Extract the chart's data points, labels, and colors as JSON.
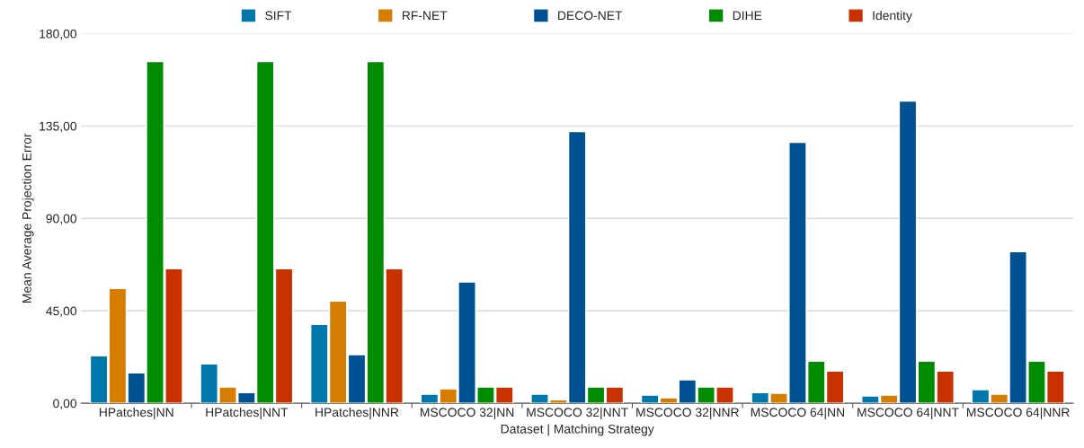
{
  "chart_data": {
    "type": "bar",
    "xlabel": "Dataset | Matching Strategy",
    "ylabel": "Mean Average Projection Error",
    "categories": [
      "HPatches|NN",
      "HPatches|NNT",
      "HPatches|NNR",
      "MSCOCO 32|NN",
      "MSCOCO 32|NNT",
      "MSCOCO 32|NNR",
      "MSCOCO 64|NN",
      "MSCOCO 64|NNT",
      "MSCOCO 64|NNR"
    ],
    "series": [
      {
        "name": "SIFT",
        "color": "#0077aa",
        "values": [
          23.1,
          19.2,
          38.4,
          4.4,
          4.4,
          3.9,
          5.2,
          3.5,
          6.6
        ]
      },
      {
        "name": "RF-NET",
        "color": "#d57d00",
        "values": [
          55.9,
          7.9,
          49.8,
          7.0,
          1.7,
          2.6,
          4.8,
          3.9,
          4.4
        ]
      },
      {
        "name": "DECO-NET",
        "color": "#005191",
        "values": [
          14.8,
          5.2,
          23.6,
          59.1,
          132.3,
          11.4,
          127.0,
          147.2,
          73.8
        ]
      },
      {
        "name": "DIHE",
        "color": "#008c00",
        "values": [
          166.4,
          166.4,
          166.4,
          7.9,
          7.9,
          7.9,
          20.5,
          20.5,
          20.5
        ]
      },
      {
        "name": "Identity",
        "color": "#c83200",
        "values": [
          65.5,
          65.5,
          65.5,
          7.9,
          7.9,
          7.9,
          15.7,
          15.7,
          15.7
        ]
      }
    ],
    "ylim": [
      0,
      180
    ],
    "yticks": [
      {
        "value": 0,
        "label": "0,00"
      },
      {
        "value": 45,
        "label": "45,00"
      },
      {
        "value": 90,
        "label": "90,00"
      },
      {
        "value": 135,
        "label": "135,00"
      },
      {
        "value": 180,
        "label": "180,00"
      }
    ],
    "grid": "y",
    "legend": "top"
  }
}
